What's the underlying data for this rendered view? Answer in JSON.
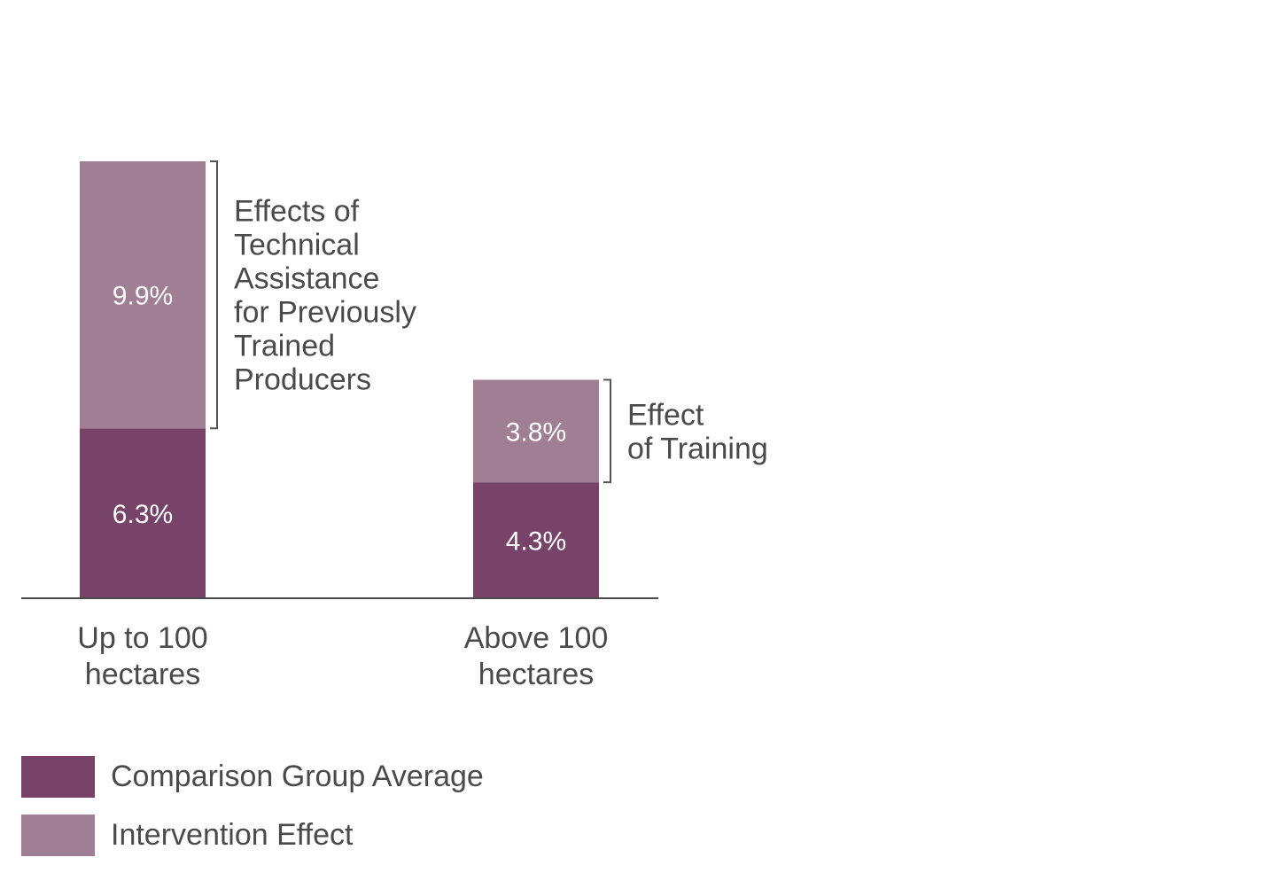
{
  "chart_data": {
    "type": "bar",
    "stacked": true,
    "categories": [
      "Up to 100\nhectares",
      "Above 100\nhectares"
    ],
    "series": [
      {
        "name": "Comparison Group Average",
        "values": [
          6.3,
          4.3
        ],
        "labels": [
          "6.3%",
          "4.3%"
        ],
        "color": "#774369"
      },
      {
        "name": "Intervention Effect",
        "values": [
          9.9,
          3.8
        ],
        "labels": [
          "9.9%",
          "3.8%"
        ],
        "color": "#a07f94"
      }
    ],
    "annotations": [
      {
        "category_index": 0,
        "text": "Effects of\nTechnical\nAssistance\nfor Previously\nTrained\nProducers"
      },
      {
        "category_index": 1,
        "text": "Effect\nof Training"
      }
    ],
    "ylim": [
      0,
      16.2
    ],
    "grid": false,
    "legend_position": "bottom-left",
    "title": "",
    "xlabel": "",
    "ylabel": ""
  },
  "legend": {
    "items": [
      {
        "label": "Comparison Group Average",
        "color": "#774369"
      },
      {
        "label": "Intervention Effect",
        "color": "#a07f94"
      }
    ]
  },
  "colors": {
    "axis": "#4a4a4a",
    "bracket": "#555555",
    "text": "#4a4a4a"
  }
}
